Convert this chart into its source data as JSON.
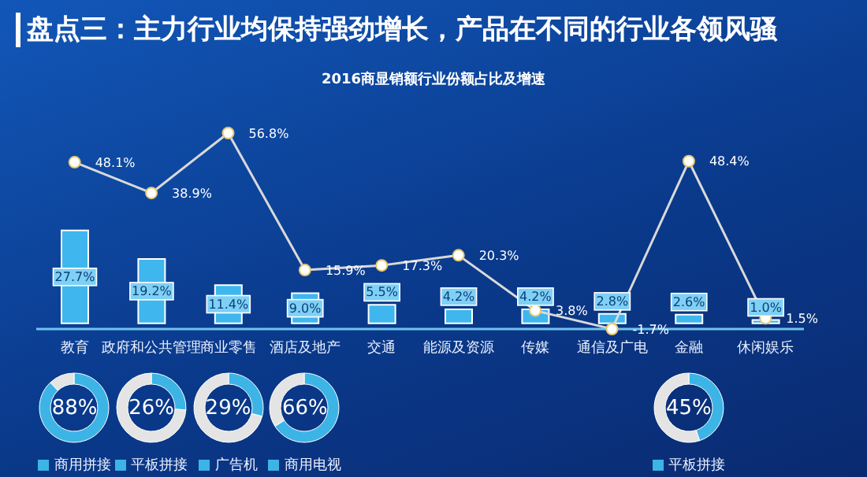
{
  "chart_data": [
    {
      "type": "bar",
      "title": "盘点三：主力行业均保持强劲增长，产品在不同的行业各领风骚",
      "subtitle": "2016商显销额行业份额占比及增速",
      "categories": [
        "教育",
        "政府和公共管理",
        "商业零售",
        "酒店及地产",
        "交通",
        "能源及资源",
        "传媒",
        "通信及广电",
        "金融",
        "休闲娱乐"
      ],
      "marker": "circle",
      "series": [
        {
          "type": "bar",
          "color": "#3fb6ee",
          "values": [
            27.7,
            19.2,
            11.4,
            9.0,
            5.5,
            4.2,
            4.2,
            2.8,
            2.6,
            1.0
          ],
          "value_labels": [
            "27.7%",
            "19.2%",
            "11.4%",
            "9.0%",
            "5.5%",
            "4.2%",
            "4.2%",
            "2.8%",
            "2.6%",
            "1.0%"
          ]
        },
        {
          "type": "line",
          "color": "#d9d9d9",
          "values": [
            48.1,
            38.9,
            56.8,
            15.9,
            17.3,
            20.3,
            3.8,
            -1.7,
            48.4,
            1.5
          ],
          "value_labels": [
            "48.1%",
            "38.9%",
            "56.8%",
            "15.9%",
            "17.3%",
            "20.3%",
            "3.8%",
            "-1.7%",
            "48.4%",
            "1.5%"
          ]
        }
      ]
    },
    {
      "type": "donut",
      "categories": [
        "商用拼接",
        null
      ],
      "values": [
        88,
        12
      ],
      "colors": [
        "#3cb4e6",
        "#e4e4e4"
      ],
      "annotations": [
        "88%"
      ],
      "legend": "bottom"
    },
    {
      "type": "donut",
      "categories": [
        "平板拼接",
        null
      ],
      "values": [
        26,
        74
      ],
      "colors": [
        "#3cb4e6",
        "#e4e4e4"
      ],
      "annotations": [
        "26%"
      ],
      "legend": "bottom"
    },
    {
      "type": "donut",
      "categories": [
        "广告机",
        null
      ],
      "values": [
        29,
        71
      ],
      "colors": [
        "#3cb4e6",
        "#e4e4e4"
      ],
      "annotations": [
        "29%"
      ],
      "legend": "bottom"
    },
    {
      "type": "donut",
      "categories": [
        "商用电视",
        null
      ],
      "values": [
        66,
        34
      ],
      "colors": [
        "#3cb4e6",
        "#e4e4e4"
      ],
      "annotations": [
        "66%"
      ],
      "legend": "bottom"
    },
    {
      "type": "donut",
      "categories": [
        "平板拼接",
        null
      ],
      "values": [
        45,
        55
      ],
      "colors": [
        "#3cb4e6",
        "#e4e4e4"
      ],
      "annotations": [
        "45%"
      ],
      "legend": "bottom"
    }
  ]
}
